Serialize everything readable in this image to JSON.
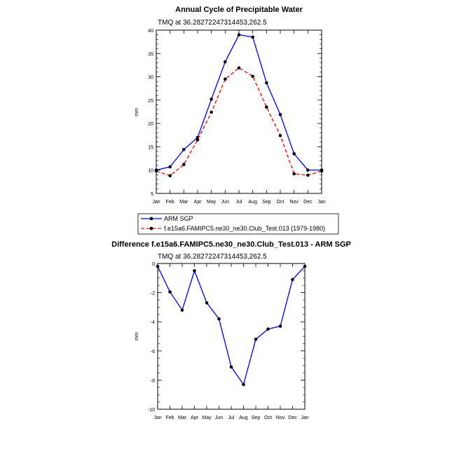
{
  "chart_data": [
    {
      "type": "line",
      "title": "Annual Cycle of Precipitable Water",
      "subtitle": "TMQ at 36.28272247314453,262.5",
      "ylabel": "mm",
      "xlabel": "",
      "ylim": [
        5,
        40
      ],
      "yticks": [
        5,
        10,
        15,
        20,
        25,
        30,
        35,
        40
      ],
      "categories": [
        "Jan",
        "Feb",
        "Mar",
        "Apr",
        "May",
        "Jun",
        "Jul",
        "Aug",
        "Sep",
        "Oct",
        "Nov",
        "Dec",
        "Jan"
      ],
      "grid": false,
      "legend_position": "bottom",
      "series": [
        {
          "name": "ARM SGP",
          "color": "#0000ff",
          "dash": "solid",
          "values": [
            10.0,
            10.7,
            14.4,
            17.0,
            25.2,
            33.2,
            39.0,
            38.5,
            28.7,
            21.9,
            13.5,
            10.0,
            10.0
          ]
        },
        {
          "name": "f.e15a6.FAMIPC5.ne30_ne30.Club_Test.013 (1979-1980)",
          "color": "#ff0000",
          "dash": "dashed",
          "values": [
            9.8,
            8.8,
            11.2,
            16.5,
            22.4,
            29.5,
            31.9,
            30.1,
            23.5,
            17.4,
            9.2,
            8.9,
            9.8
          ]
        }
      ]
    },
    {
      "type": "line",
      "title": "Difference f.e15a6.FAMIPC5.ne30_ne30.Club_Test.013 - ARM SGP",
      "subtitle": "TMQ at 36.28272247314453,262.5",
      "ylabel": "mm",
      "xlabel": "",
      "ylim": [
        -10,
        0
      ],
      "yticks": [
        -10,
        -8,
        -6,
        -4,
        -2,
        0
      ],
      "categories": [
        "Jan",
        "Feb",
        "Mar",
        "Apr",
        "May",
        "Jun",
        "Jul",
        "Aug",
        "Sep",
        "Oct",
        "Nov",
        "Dec",
        "Jan"
      ],
      "grid": false,
      "series": [
        {
          "name": "",
          "color": "#0000ff",
          "dash": "solid",
          "values": [
            -0.2,
            -1.95,
            -3.2,
            -0.5,
            -2.7,
            -3.8,
            -7.1,
            -8.3,
            -5.2,
            -4.5,
            -4.3,
            -1.1,
            -0.2
          ]
        }
      ]
    }
  ]
}
